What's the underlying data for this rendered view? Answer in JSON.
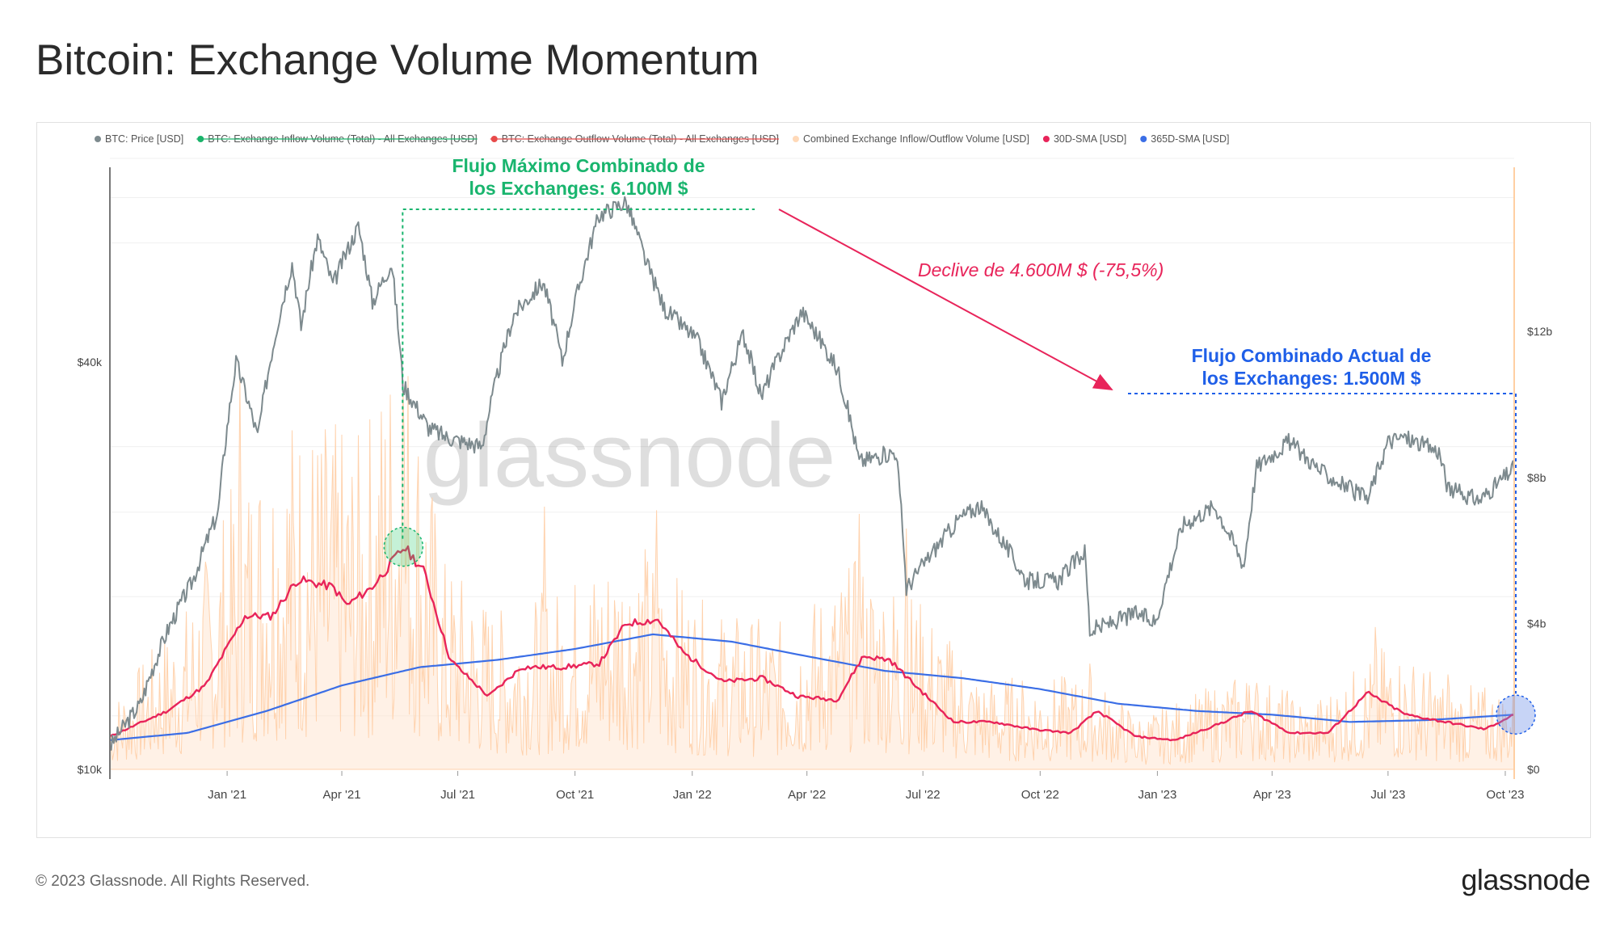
{
  "title": "Bitcoin: Exchange Volume Momentum",
  "footer": "© 2023 Glassnode. All Rights Reserved.",
  "brand": "glassnode",
  "watermark": "glassnode",
  "chart_data": {
    "type": "line",
    "legend_position": "top",
    "legend": [
      {
        "label": "BTC: Price [USD]",
        "color": "#7d8a8e",
        "struck": false
      },
      {
        "label": "BTC: Exchange Inflow Volume (Total) - All Exchanges [USD]",
        "color": "#1ab36a",
        "struck": true
      },
      {
        "label": "BTC: Exchange Outflow Volume (Total) - All Exchanges [USD]",
        "color": "#e84a4a",
        "struck": true
      },
      {
        "label": "Combined Exchange Inflow/Outflow Volume [USD]",
        "color": "#ffd9b8",
        "struck": false
      },
      {
        "label": "30D-SMA [USD]",
        "color": "#e8245a",
        "struck": false
      },
      {
        "label": "365D-SMA [USD]",
        "color": "#3b6ee6",
        "struck": false
      }
    ],
    "x_ticks": [
      "Jan '21",
      "Apr '21",
      "Jul '21",
      "Oct '21",
      "Jan '22",
      "Apr '22",
      "Jul '22",
      "Oct '22",
      "Jan '23",
      "Apr '23",
      "Jul '23",
      "Oct '23"
    ],
    "x_range": [
      "2020-10-01",
      "2023-10-08"
    ],
    "y_left": {
      "ticks": [
        "$10k",
        "$40k"
      ],
      "tick_values": [
        10000,
        40000
      ],
      "scale": "log"
    },
    "y_right": {
      "ticks": [
        "$0",
        "$4b",
        "$8b",
        "$12b"
      ],
      "tick_values": [
        0,
        4,
        8,
        12
      ],
      "unit": "billion USD",
      "range": [
        0,
        16.5
      ]
    },
    "series": [
      {
        "name": "BTC: Price [USD]",
        "axis": "left",
        "color": "#7d8a8e",
        "points": [
          [
            "2020-10-01",
            10800
          ],
          [
            "2020-10-25",
            12500
          ],
          [
            "2020-11-15",
            16000
          ],
          [
            "2020-12-05",
            19000
          ],
          [
            "2020-12-25",
            24000
          ],
          [
            "2021-01-08",
            40000
          ],
          [
            "2021-01-25",
            31000
          ],
          [
            "2021-02-10",
            46000
          ],
          [
            "2021-02-21",
            56000
          ],
          [
            "2021-02-28",
            45000
          ],
          [
            "2021-03-13",
            61000
          ],
          [
            "2021-03-25",
            52000
          ],
          [
            "2021-04-14",
            63500
          ],
          [
            "2021-04-25",
            49000
          ],
          [
            "2021-05-10",
            56000
          ],
          [
            "2021-05-19",
            37000
          ],
          [
            "2021-06-08",
            32000
          ],
          [
            "2021-06-22",
            31000
          ],
          [
            "2021-07-20",
            30000
          ],
          [
            "2021-08-14",
            47000
          ],
          [
            "2021-09-06",
            52500
          ],
          [
            "2021-09-21",
            40000
          ],
          [
            "2021-10-20",
            66000
          ],
          [
            "2021-11-10",
            69000
          ],
          [
            "2021-11-26",
            56000
          ],
          [
            "2021-12-10",
            48000
          ],
          [
            "2022-01-05",
            43000
          ],
          [
            "2022-01-24",
            35000
          ],
          [
            "2022-02-10",
            44000
          ],
          [
            "2022-02-24",
            35500
          ],
          [
            "2022-03-28",
            47500
          ],
          [
            "2022-04-25",
            39000
          ],
          [
            "2022-05-12",
            28500
          ],
          [
            "2022-06-10",
            29500
          ],
          [
            "2022-06-18",
            18500
          ],
          [
            "2022-07-30",
            23500
          ],
          [
            "2022-08-14",
            24500
          ],
          [
            "2022-09-20",
            19000
          ],
          [
            "2022-10-15",
            19000
          ],
          [
            "2022-11-05",
            21000
          ],
          [
            "2022-11-09",
            16000
          ],
          [
            "2022-12-15",
            17000
          ],
          [
            "2022-12-31",
            16500
          ],
          [
            "2023-01-21",
            23000
          ],
          [
            "2023-02-15",
            24500
          ],
          [
            "2023-03-10",
            20000
          ],
          [
            "2023-03-20",
            28000
          ],
          [
            "2023-04-14",
            30500
          ],
          [
            "2023-05-10",
            27500
          ],
          [
            "2023-06-15",
            25000
          ],
          [
            "2023-07-01",
            30500
          ],
          [
            "2023-07-13",
            31000
          ],
          [
            "2023-08-10",
            29500
          ],
          [
            "2023-08-17",
            26000
          ],
          [
            "2023-09-11",
            25000
          ],
          [
            "2023-09-30",
            27000
          ],
          [
            "2023-10-08",
            27900
          ]
        ]
      },
      {
        "name": "Combined Exchange Inflow/Outflow Volume [USD]",
        "axis": "right",
        "color": "#ffd9b8",
        "baseline_points": [
          [
            "2020-10-01",
            1.0
          ],
          [
            "2020-12-01",
            2.5
          ],
          [
            "2021-01-10",
            4.5
          ],
          [
            "2021-02-20",
            5.5
          ],
          [
            "2021-04-15",
            5.0
          ],
          [
            "2021-05-20",
            7.0
          ],
          [
            "2021-06-20",
            3.2
          ],
          [
            "2021-08-01",
            2.4
          ],
          [
            "2021-09-15",
            2.7
          ],
          [
            "2021-11-15",
            3.6
          ],
          [
            "2022-01-15",
            2.4
          ],
          [
            "2022-03-15",
            2.2
          ],
          [
            "2022-05-12",
            3.2
          ],
          [
            "2022-06-18",
            2.8
          ],
          [
            "2022-08-15",
            1.4
          ],
          [
            "2022-11-10",
            1.4
          ],
          [
            "2022-12-20",
            0.8
          ],
          [
            "2023-03-15",
            1.5
          ],
          [
            "2023-05-01",
            1.0
          ],
          [
            "2023-07-01",
            1.9
          ],
          [
            "2023-08-20",
            1.3
          ],
          [
            "2023-10-08",
            1.2
          ]
        ],
        "spikes": [
          [
            "2021-01-11",
            10.8
          ],
          [
            "2021-05-19",
            10.5
          ],
          [
            "2021-09-07",
            7.2
          ],
          [
            "2021-12-04",
            7.1
          ],
          [
            "2022-05-12",
            7.0
          ],
          [
            "2022-06-18",
            6.6
          ],
          [
            "2022-11-09",
            2.9
          ],
          [
            "2023-03-14",
            2.3
          ],
          [
            "2023-06-21",
            3.9
          ],
          [
            "2023-08-17",
            2.6
          ]
        ]
      },
      {
        "name": "30D-SMA [USD]",
        "axis": "right",
        "color": "#e8245a",
        "points": [
          [
            "2020-10-01",
            0.9
          ],
          [
            "2020-11-15",
            1.6
          ],
          [
            "2020-12-15",
            2.3
          ],
          [
            "2021-01-15",
            4.2
          ],
          [
            "2021-02-05",
            4.2
          ],
          [
            "2021-02-25",
            5.2
          ],
          [
            "2021-03-25",
            5.0
          ],
          [
            "2021-04-05",
            4.5
          ],
          [
            "2021-04-25",
            5.0
          ],
          [
            "2021-05-20",
            6.1
          ],
          [
            "2021-06-05",
            5.4
          ],
          [
            "2021-06-25",
            3.0
          ],
          [
            "2021-07-25",
            2.0
          ],
          [
            "2021-08-20",
            2.8
          ],
          [
            "2021-09-20",
            2.8
          ],
          [
            "2021-10-20",
            2.9
          ],
          [
            "2021-11-10",
            4.0
          ],
          [
            "2021-12-05",
            4.1
          ],
          [
            "2021-12-25",
            3.2
          ],
          [
            "2022-01-25",
            2.4
          ],
          [
            "2022-02-25",
            2.5
          ],
          [
            "2022-03-25",
            2.0
          ],
          [
            "2022-04-25",
            1.9
          ],
          [
            "2022-05-15",
            3.1
          ],
          [
            "2022-06-05",
            3.0
          ],
          [
            "2022-06-25",
            2.3
          ],
          [
            "2022-07-25",
            1.3
          ],
          [
            "2022-08-25",
            1.3
          ],
          [
            "2022-09-25",
            1.1
          ],
          [
            "2022-10-25",
            1.0
          ],
          [
            "2022-11-15",
            1.6
          ],
          [
            "2022-12-15",
            0.9
          ],
          [
            "2023-01-15",
            0.8
          ],
          [
            "2023-02-15",
            1.2
          ],
          [
            "2023-03-15",
            1.6
          ],
          [
            "2023-04-15",
            1.0
          ],
          [
            "2023-05-15",
            1.0
          ],
          [
            "2023-06-15",
            2.1
          ],
          [
            "2023-07-15",
            1.5
          ],
          [
            "2023-08-15",
            1.3
          ],
          [
            "2023-09-15",
            1.1
          ],
          [
            "2023-10-08",
            1.5
          ]
        ]
      },
      {
        "name": "365D-SMA [USD]",
        "axis": "right",
        "color": "#3b6ee6",
        "points": [
          [
            "2020-10-01",
            0.8
          ],
          [
            "2020-12-01",
            1.0
          ],
          [
            "2021-02-01",
            1.6
          ],
          [
            "2021-04-01",
            2.3
          ],
          [
            "2021-06-01",
            2.8
          ],
          [
            "2021-08-01",
            3.0
          ],
          [
            "2021-10-01",
            3.3
          ],
          [
            "2021-12-01",
            3.7
          ],
          [
            "2022-02-01",
            3.5
          ],
          [
            "2022-04-01",
            3.1
          ],
          [
            "2022-06-01",
            2.7
          ],
          [
            "2022-08-01",
            2.5
          ],
          [
            "2022-10-01",
            2.2
          ],
          [
            "2022-12-01",
            1.8
          ],
          [
            "2023-02-01",
            1.6
          ],
          [
            "2023-04-01",
            1.5
          ],
          [
            "2023-06-01",
            1.3
          ],
          [
            "2023-08-01",
            1.35
          ],
          [
            "2023-10-08",
            1.5
          ]
        ]
      }
    ],
    "annotations": [
      {
        "text_lines": [
          "Flujo Máximo Combinado de",
          "los Exchanges: 6.100M $"
        ],
        "color": "#19b56e",
        "point": [
          "2021-05-20",
          6.1
        ]
      },
      {
        "text": "Declive de 4.600M $ (-75,5%)",
        "color": "#e8245a",
        "style": "italic"
      },
      {
        "text_lines": [
          "Flujo Combinado Actual de",
          "los Exchanges: 1.500M $"
        ],
        "color": "#1f5fe8",
        "point": [
          "2023-10-08",
          1.5
        ]
      }
    ]
  }
}
